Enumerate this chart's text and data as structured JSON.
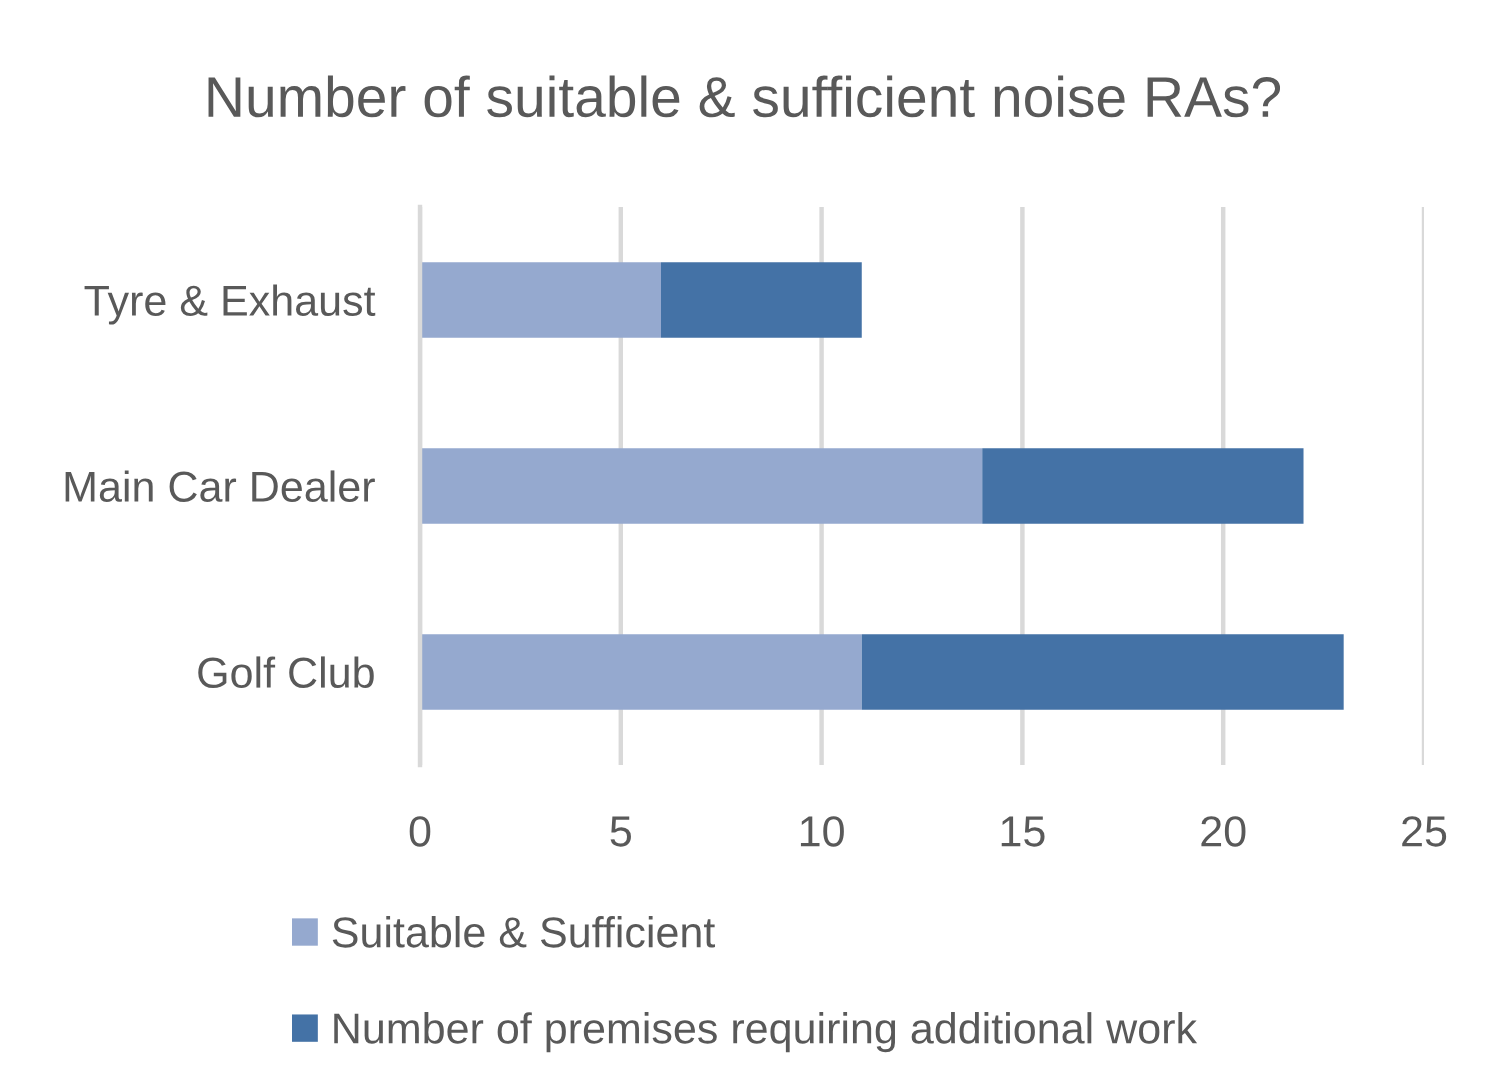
{
  "chart_data": {
    "type": "bar",
    "title": "Number of suitable & sufficient noise RAs?",
    "orientation": "horizontal",
    "stacked": true,
    "categories": [
      "Tyre & Exhaust",
      "Main Car Dealer",
      "Golf Club"
    ],
    "series": [
      {
        "name": "Suitable & Sufficient",
        "color": "#95a9cf",
        "values": [
          6,
          14,
          11
        ]
      },
      {
        "name": "Number of premises requiring additional work",
        "color": "#4472a6",
        "values": [
          5,
          8,
          12
        ]
      }
    ],
    "xlim": [
      0,
      25
    ],
    "xticks": [
      0,
      5,
      10,
      15,
      20,
      25
    ],
    "grid": "x",
    "legend": "bottom"
  }
}
